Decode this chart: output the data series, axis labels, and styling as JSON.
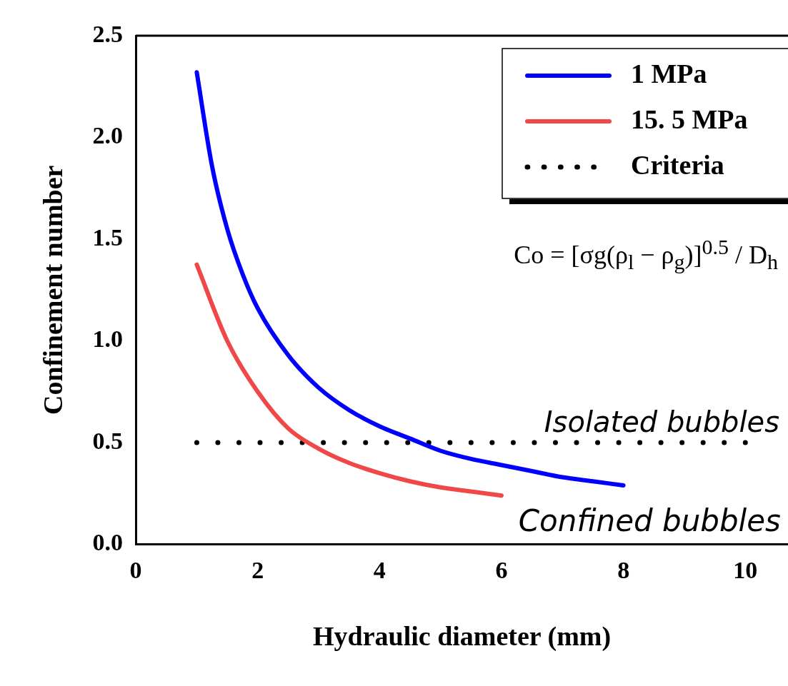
{
  "chart_data": {
    "type": "line",
    "xlabel": "Hydraulic diameter (mm)",
    "ylabel": "Confinement number",
    "xlim": [
      0,
      10.7
    ],
    "xticks": [
      0,
      2,
      4,
      6,
      8,
      10
    ],
    "ylim": [
      0,
      2.5
    ],
    "yticks": [
      {
        "value": 0,
        "label": "0.0"
      },
      {
        "value": 0.5,
        "label": "0.5"
      },
      {
        "value": 1,
        "label": "1.0"
      },
      {
        "value": 1.5,
        "label": "1.5"
      },
      {
        "value": 2,
        "label": "2.0"
      },
      {
        "value": 2.5,
        "label": "2.5"
      }
    ],
    "grid": false,
    "legend": "top right",
    "marker": "none",
    "series": [
      {
        "name": "1 MPa",
        "color": "#0000ff",
        "line_style": "solid",
        "x": [
          1,
          1.25,
          1.5,
          1.75,
          2,
          2.5,
          3,
          3.5,
          4,
          4.5,
          5,
          5.5,
          6,
          6.5,
          7,
          7.5,
          8
        ],
        "values": [
          2.32,
          1.86,
          1.55,
          1.33,
          1.16,
          0.93,
          0.77,
          0.66,
          0.58,
          0.52,
          0.46,
          0.42,
          0.39,
          0.36,
          0.33,
          0.31,
          0.29
        ]
      },
      {
        "name": "15. 5 MPa",
        "color": "#f04848",
        "line_style": "solid",
        "x": [
          1,
          1.5,
          2,
          2.5,
          3,
          3.5,
          4,
          4.5,
          5,
          5.5,
          6
        ],
        "values": [
          1.375,
          1.0,
          0.75,
          0.57,
          0.47,
          0.4,
          0.35,
          0.31,
          0.28,
          0.26,
          0.24
        ]
      },
      {
        "name": "Criteria",
        "color": "#000000",
        "line_style": "dotted",
        "x": [
          1,
          10
        ],
        "values": [
          0.5,
          0.5
        ]
      }
    ],
    "annotations": [
      "Co = [σg(ρ$_{l}$ − ρ$_{g}$)]$^{0.5}$ / D$_{h}$",
      "Isolated bubbles",
      "Confined bubbles"
    ]
  }
}
